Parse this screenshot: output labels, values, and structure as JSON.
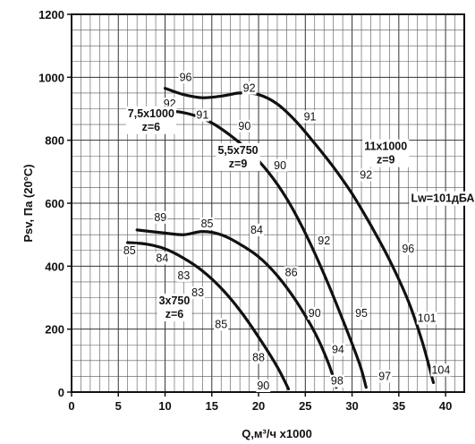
{
  "chart_data": {
    "type": "line",
    "xlabel": "Q,м³/ч х1000",
    "ylabel": "Psv, Па (20°С)",
    "xlim": [
      0,
      42
    ],
    "ylim": [
      0,
      1200
    ],
    "x_ticks": [
      0,
      5,
      10,
      15,
      20,
      25,
      30,
      35,
      40
    ],
    "y_ticks": [
      0,
      200,
      400,
      600,
      800,
      1000,
      1200
    ],
    "grid": true,
    "series": [
      {
        "label_lines": [
          "3х750",
          "z=6"
        ],
        "label_anchor": [
          11,
          290
        ],
        "points": [
          [
            6,
            475
          ],
          [
            8,
            470
          ],
          [
            10,
            455
          ],
          [
            12,
            425
          ],
          [
            14,
            385
          ],
          [
            16,
            330
          ],
          [
            18,
            260
          ],
          [
            20,
            175
          ],
          [
            22,
            80
          ],
          [
            23.2,
            10
          ]
        ]
      },
      {
        "label_lines": [
          "5,5х750",
          "z=9"
        ],
        "label_anchor": [
          17.8,
          768
        ],
        "points": [
          [
            7,
            515
          ],
          [
            10,
            505
          ],
          [
            12,
            500
          ],
          [
            14,
            510
          ],
          [
            16,
            500
          ],
          [
            18,
            470
          ],
          [
            20,
            430
          ],
          [
            22,
            370
          ],
          [
            24,
            290
          ],
          [
            26,
            190
          ],
          [
            27.5,
            90
          ],
          [
            28.3,
            15
          ]
        ]
      },
      {
        "label_lines": [
          "7,5х1000",
          "z=6"
        ],
        "label_anchor": [
          8.5,
          885
        ],
        "points": [
          [
            8,
            895
          ],
          [
            11,
            892
          ],
          [
            13,
            880
          ],
          [
            15,
            855
          ],
          [
            17,
            815
          ],
          [
            19,
            765
          ],
          [
            21,
            700
          ],
          [
            23,
            615
          ],
          [
            25,
            505
          ],
          [
            27,
            375
          ],
          [
            29,
            230
          ],
          [
            30.8,
            90
          ],
          [
            31.5,
            15
          ]
        ]
      },
      {
        "label_lines": [
          "11х1000",
          "z=9"
        ],
        "label_anchor": [
          33.6,
          780
        ],
        "points": [
          [
            10,
            965
          ],
          [
            12,
            945
          ],
          [
            14,
            935
          ],
          [
            16,
            940
          ],
          [
            18,
            950
          ],
          [
            20,
            945
          ],
          [
            22,
            915
          ],
          [
            24,
            860
          ],
          [
            26,
            790
          ],
          [
            28,
            715
          ],
          [
            30,
            630
          ],
          [
            32,
            530
          ],
          [
            34,
            420
          ],
          [
            36,
            290
          ],
          [
            37.5,
            160
          ],
          [
            38.7,
            30
          ]
        ]
      }
    ],
    "point_labels": [
      {
        "text": "96",
        "x": 12.2,
        "y": 1000
      },
      {
        "text": "92",
        "x": 19,
        "y": 965
      },
      {
        "text": "91",
        "x": 25.5,
        "y": 875
      },
      {
        "text": "92",
        "x": 10.5,
        "y": 915
      },
      {
        "text": "91",
        "x": 14,
        "y": 880
      },
      {
        "text": "90",
        "x": 18.5,
        "y": 845
      },
      {
        "text": "90",
        "x": 22.3,
        "y": 720
      },
      {
        "text": "92",
        "x": 31.5,
        "y": 690
      },
      {
        "text": "89",
        "x": 9.5,
        "y": 555
      },
      {
        "text": "85",
        "x": 14.5,
        "y": 535
      },
      {
        "text": "84",
        "x": 19.8,
        "y": 515
      },
      {
        "text": "92",
        "x": 27,
        "y": 480
      },
      {
        "text": "96",
        "x": 36,
        "y": 455
      },
      {
        "text": "85",
        "x": 6.2,
        "y": 450
      },
      {
        "text": "84",
        "x": 9.7,
        "y": 425
      },
      {
        "text": "83",
        "x": 12,
        "y": 370
      },
      {
        "text": "83",
        "x": 13.5,
        "y": 315
      },
      {
        "text": "86",
        "x": 23.5,
        "y": 380
      },
      {
        "text": "90",
        "x": 26,
        "y": 250
      },
      {
        "text": "95",
        "x": 31,
        "y": 250
      },
      {
        "text": "101",
        "x": 38,
        "y": 235
      },
      {
        "text": "85",
        "x": 16,
        "y": 215
      },
      {
        "text": "94",
        "x": 28.5,
        "y": 135
      },
      {
        "text": "88",
        "x": 20,
        "y": 110
      },
      {
        "text": "90",
        "x": 20.5,
        "y": 20
      },
      {
        "text": "98",
        "x": 28.4,
        "y": 35
      },
      {
        "text": "97",
        "x": 33.5,
        "y": 50
      },
      {
        "text": "104",
        "x": 39.5,
        "y": 70
      }
    ],
    "annotations": [
      {
        "text": "Lw=101дБА",
        "x": 39.7,
        "y": 615
      }
    ]
  }
}
